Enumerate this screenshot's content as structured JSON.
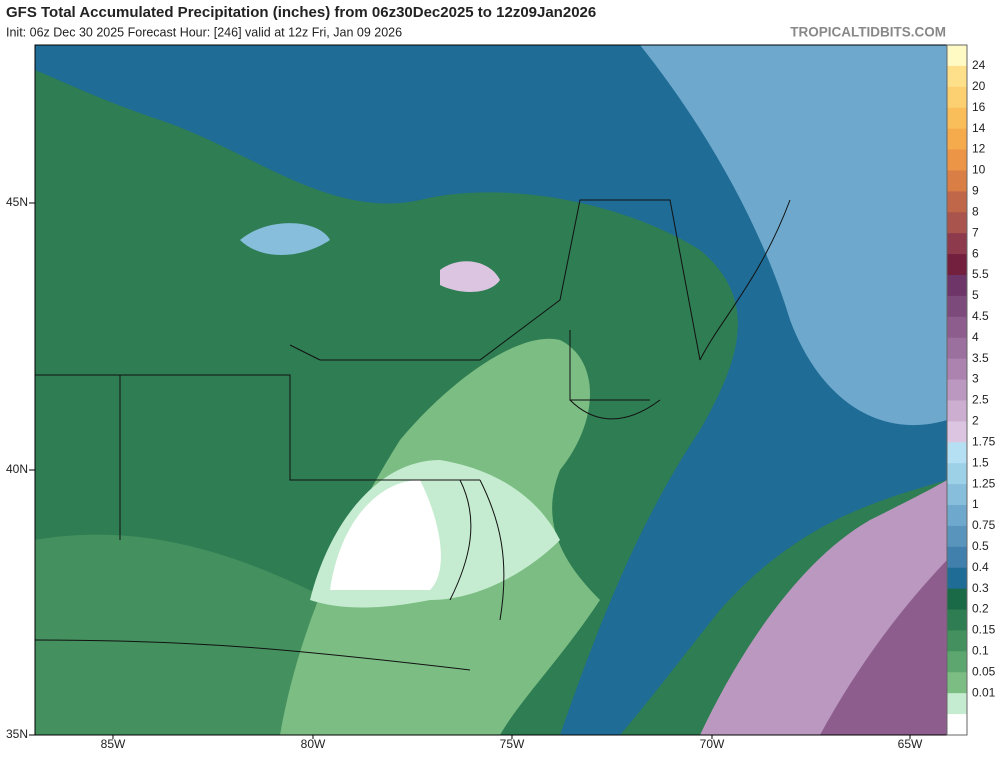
{
  "header": {
    "title": "GFS Total Accumulated Precipitation (inches) from 06z30Dec2025 to 12z09Jan2026",
    "subtitle": "Init: 06z Dec 30 2025   Forecast Hour: [246]   valid at 12z Fri, Jan 09 2026",
    "brand": "TROPICALTIDBITS.COM"
  },
  "map": {
    "lat_labels": [
      "45N",
      "40N",
      "35N"
    ],
    "lon_labels": [
      "85W",
      "80W",
      "75W",
      "70W",
      "65W"
    ]
  },
  "colorbar": {
    "labels": [
      "24",
      "20",
      "16",
      "14",
      "12",
      "10",
      "9",
      "8",
      "7",
      "6",
      "5.5",
      "5",
      "4.5",
      "4",
      "3.5",
      "3",
      "2.5",
      "2",
      "1.75",
      "1.5",
      "1.25",
      "1",
      "0.75",
      "0.5",
      "0.4",
      "0.3",
      "0.2",
      "0.15",
      "0.1",
      "0.05",
      "0.01"
    ],
    "colors": [
      "#fff9c4",
      "#ffe08a",
      "#fcd070",
      "#f9be5a",
      "#f5aa4c",
      "#ed9546",
      "#d97f45",
      "#c0674a",
      "#a9544c",
      "#8c3a4c",
      "#73203f",
      "#6e3668",
      "#7d4a7c",
      "#8c5d8d",
      "#9b6f9e",
      "#ab83ae",
      "#bb98bf",
      "#cbaed0",
      "#dbc5e0",
      "#b5dff2",
      "#9dd1e8",
      "#86bedc",
      "#6ea9cd",
      "#5994bd",
      "#417fac",
      "#1f6c97",
      "#1b6a47",
      "#2f7d52",
      "#44905e",
      "#5ea66f",
      "#7cbd84",
      "#c5ecd0",
      "#ffffff"
    ]
  }
}
